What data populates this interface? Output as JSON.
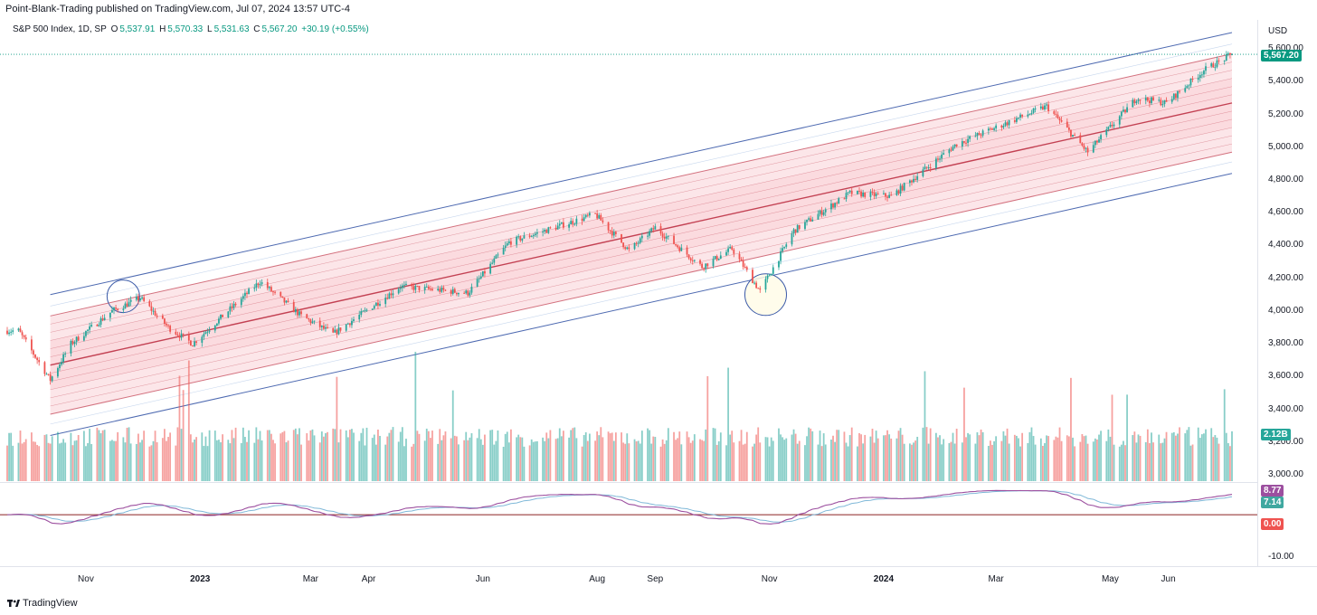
{
  "header": {
    "published_line": "Point-Blank-Trading published on TradingView.com, Jul 07, 2024 13:57 UTC-4"
  },
  "legend": {
    "symbol": "S&P 500 Index, 1D, SP",
    "open_label": "O",
    "open_value": "5,537.91",
    "high_label": "H",
    "high_value": "5,570.33",
    "low_label": "L",
    "low_value": "5,531.63",
    "close_label": "C",
    "close_value": "5,567.20",
    "change": "+30.19 (+0.55%)"
  },
  "price_axis": {
    "currency": "USD",
    "ticks": [
      "5,600.00",
      "5,400.00",
      "5,200.00",
      "5,000.00",
      "4,800.00",
      "4,600.00",
      "4,400.00",
      "4,200.00",
      "4,000.00",
      "3,800.00",
      "3,600.00",
      "3,400.00",
      "3,200.00",
      "3,000.00"
    ],
    "last_price_badge": "5,567.20",
    "volume_badge": "2.12B"
  },
  "oscillator_axis": {
    "ticks": [
      "-10.00"
    ],
    "macd_badge": "8.77",
    "signal_badge": "7.14",
    "zero_badge": "0.00"
  },
  "time_axis": {
    "labels": [
      "Nov",
      "2023",
      "Mar",
      "Apr",
      "Jun",
      "Aug",
      "Sep",
      "Nov",
      "2024",
      "Mar",
      "May",
      "Jun"
    ],
    "bold": [
      false,
      true,
      false,
      false,
      false,
      false,
      false,
      false,
      true,
      false,
      false,
      false
    ]
  },
  "footer": {
    "brand": "TradingView"
  },
  "colors": {
    "up": "#26a69a",
    "down": "#ef5350",
    "channel_outer": "#3b5aa8",
    "channel_inner": "#c0394b",
    "fill": "#f8c7cf",
    "macd": "#9c4f9f",
    "signal": "#7fb8d8",
    "zero": "#8b2020"
  },
  "chart_data": {
    "type": "candlestick",
    "title": "S&P 500 Index, 1D, SP",
    "ylim": [
      3000,
      5700
    ],
    "last_close": 5567.2,
    "anchors": [
      {
        "date": "2022-09-26",
        "value": 3880
      },
      {
        "date": "2022-10-13",
        "value": 3580
      },
      {
        "date": "2022-10-24",
        "value": 3800
      },
      {
        "date": "2022-11-15",
        "value": 4000
      },
      {
        "date": "2022-11-30",
        "value": 4080
      },
      {
        "date": "2022-12-15",
        "value": 3900
      },
      {
        "date": "2022-12-28",
        "value": 3800
      },
      {
        "date": "2023-02-02",
        "value": 4180
      },
      {
        "date": "2023-02-24",
        "value": 3970
      },
      {
        "date": "2023-03-13",
        "value": 3860
      },
      {
        "date": "2023-04-18",
        "value": 4150
      },
      {
        "date": "2023-05-24",
        "value": 4110
      },
      {
        "date": "2023-06-15",
        "value": 4420
      },
      {
        "date": "2023-07-31",
        "value": 4590
      },
      {
        "date": "2023-08-18",
        "value": 4370
      },
      {
        "date": "2023-09-01",
        "value": 4510
      },
      {
        "date": "2023-09-26",
        "value": 4270
      },
      {
        "date": "2023-10-12",
        "value": 4380
      },
      {
        "date": "2023-10-27",
        "value": 4120
      },
      {
        "date": "2023-11-14",
        "value": 4490
      },
      {
        "date": "2023-12-14",
        "value": 4720
      },
      {
        "date": "2024-01-05",
        "value": 4700
      },
      {
        "date": "2024-02-09",
        "value": 5020
      },
      {
        "date": "2024-03-28",
        "value": 5250
      },
      {
        "date": "2024-04-19",
        "value": 4970
      },
      {
        "date": "2024-05-15",
        "value": 5300
      },
      {
        "date": "2024-05-31",
        "value": 5270
      },
      {
        "date": "2024-06-20",
        "value": 5470
      },
      {
        "date": "2024-07-05",
        "value": 5567.2
      }
    ],
    "regression_channel": {
      "start": {
        "date": "2022-10-13",
        "value": 3670
      },
      "end": {
        "date": "2024-07-05",
        "value": 5270
      },
      "band_offsets": [
        -250,
        -300,
        -200,
        -150,
        -100,
        -50,
        0,
        50,
        100,
        150,
        200,
        250,
        300,
        350
      ],
      "outer_offsets": [
        -430,
        -360,
        360,
        430
      ]
    },
    "highlight_circles": [
      {
        "date": "2022-11-21",
        "value": 4090
      },
      {
        "date": "2023-10-30",
        "value": 4100
      }
    ],
    "indicators": {
      "volume_last": "2.12B",
      "macd_last": 8.77,
      "signal_last": 7.14,
      "oscillator_range": [
        -12,
        10
      ]
    }
  }
}
